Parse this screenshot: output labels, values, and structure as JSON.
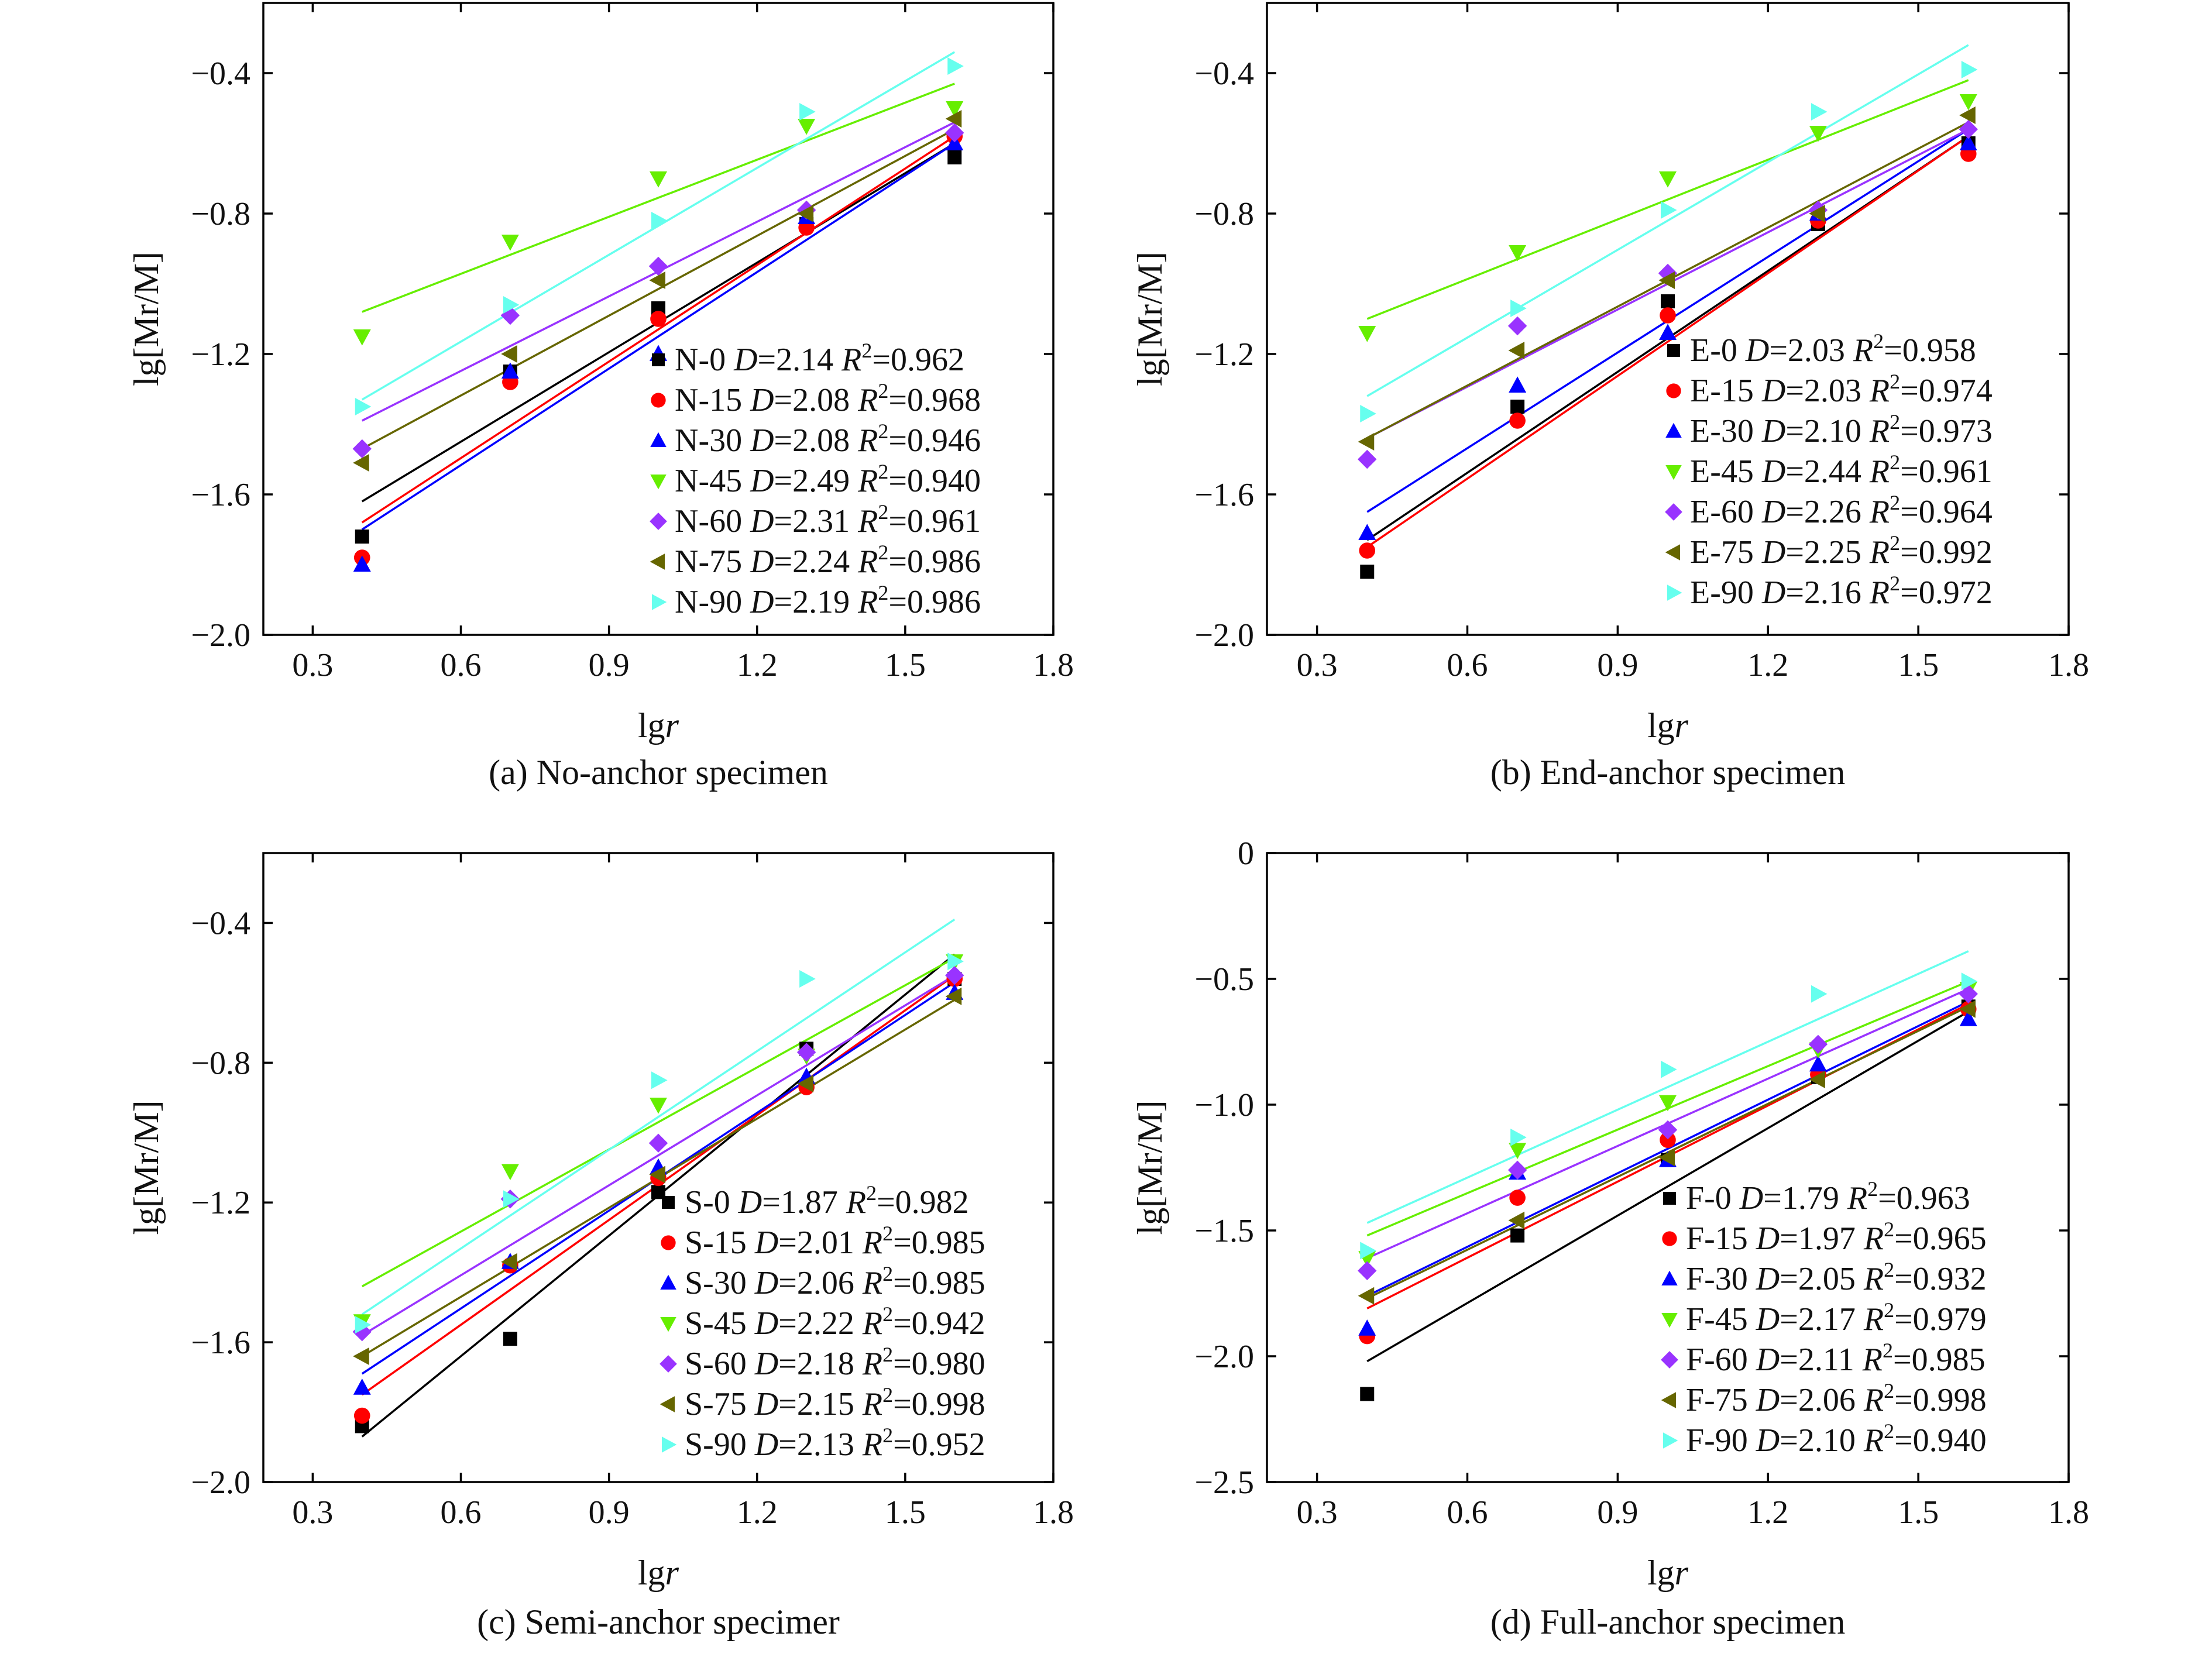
{
  "figure": {
    "panels": [
      "a",
      "b",
      "c",
      "d"
    ]
  },
  "chart_data": [
    {
      "type": "scatter",
      "caption": "(a) No-anchor specimen",
      "xlabel_prefix": "lg",
      "xlabel_var": "r",
      "ylabel": "lg[Mr/M]",
      "xlim": [
        0.2,
        1.8
      ],
      "ylim": [
        -2.0,
        -0.2
      ],
      "xticks": [
        0.3,
        0.6,
        0.9,
        1.2,
        1.5,
        1.8
      ],
      "xtick_labels": [
        "0.3",
        "0.6",
        "0.9",
        "1.2",
        "1.5",
        "1.8"
      ],
      "yticks": [
        -2.0,
        -1.6,
        -1.2,
        -0.8,
        -0.4
      ],
      "ytick_labels": [
        "−2.0",
        "−1.6",
        "−1.2",
        "−0.8",
        "−0.4"
      ],
      "legend_position": "bottom-right",
      "x": [
        0.4,
        0.7,
        1.0,
        1.3,
        1.6
      ],
      "series": [
        {
          "name": "N-0",
          "D": "2.14",
          "R2": "0.962",
          "color": "#000000",
          "marker": "square",
          "values": [
            -1.72,
            -1.25,
            -1.07,
            -0.83,
            -0.64
          ],
          "fit": [
            -1.62,
            -0.6
          ]
        },
        {
          "name": "N-15",
          "D": "2.08",
          "R2": "0.968",
          "color": "#ff0000",
          "marker": "circle",
          "values": [
            -1.78,
            -1.28,
            -1.1,
            -0.84,
            -0.58
          ],
          "fit": [
            -1.68,
            -0.58
          ]
        },
        {
          "name": "N-30",
          "D": "2.08",
          "R2": "0.946",
          "color": "#0000ff",
          "marker": "triangle-up",
          "values": [
            -1.8,
            -1.25,
            -1.2,
            -0.81,
            -0.6
          ],
          "fit": [
            -1.7,
            -0.6
          ]
        },
        {
          "name": "N-45",
          "D": "2.49",
          "R2": "0.940",
          "color": "#66ee00",
          "marker": "triangle-down",
          "values": [
            -1.15,
            -0.88,
            -0.7,
            -0.55,
            -0.5
          ],
          "fit": [
            -1.08,
            -0.43
          ]
        },
        {
          "name": "N-60",
          "D": "2.31",
          "R2": "0.961",
          "color": "#9933ff",
          "marker": "diamond",
          "values": [
            -1.47,
            -1.09,
            -0.95,
            -0.79,
            -0.57
          ],
          "fit": [
            -1.39,
            -0.54
          ]
        },
        {
          "name": "N-75",
          "D": "2.24",
          "R2": "0.986",
          "color": "#666600",
          "marker": "triangle-left",
          "values": [
            -1.51,
            -1.2,
            -0.99,
            -0.8,
            -0.53
          ],
          "fit": [
            -1.47,
            -0.56
          ]
        },
        {
          "name": "N-90",
          "D": "2.19",
          "R2": "0.986",
          "color": "#66ffee",
          "marker": "triangle-right",
          "values": [
            -1.35,
            -1.06,
            -0.82,
            -0.51,
            -0.38
          ],
          "fit": [
            -1.33,
            -0.34
          ]
        }
      ]
    },
    {
      "type": "scatter",
      "caption": "(b) End-anchor specimen",
      "xlabel_prefix": "lg",
      "xlabel_var": "r",
      "ylabel": "lg[Mr/M]",
      "xlim": [
        0.2,
        1.8
      ],
      "ylim": [
        -2.0,
        -0.2
      ],
      "xticks": [
        0.3,
        0.6,
        0.9,
        1.2,
        1.5,
        1.8
      ],
      "xtick_labels": [
        "0.3",
        "0.6",
        "0.9",
        "1.2",
        "1.5",
        "1.8"
      ],
      "yticks": [
        -2.0,
        -1.6,
        -1.2,
        -0.8,
        -0.4
      ],
      "ytick_labels": [
        "−2.0",
        "−1.6",
        "−1.2",
        "−0.8",
        "−0.4"
      ],
      "legend_position": "bottom-right",
      "x": [
        0.4,
        0.7,
        1.0,
        1.3,
        1.6
      ],
      "series": [
        {
          "name": "E-0",
          "D": "2.03",
          "R2": "0.958",
          "color": "#000000",
          "marker": "square",
          "values": [
            -1.82,
            -1.35,
            -1.05,
            -0.83,
            -0.6
          ],
          "fit": [
            -1.73,
            -0.58
          ]
        },
        {
          "name": "E-15",
          "D": "2.03",
          "R2": "0.974",
          "color": "#ff0000",
          "marker": "circle",
          "values": [
            -1.76,
            -1.39,
            -1.09,
            -0.82,
            -0.63
          ],
          "fit": [
            -1.75,
            -0.58
          ]
        },
        {
          "name": "E-30",
          "D": "2.10",
          "R2": "0.973",
          "color": "#0000ff",
          "marker": "triangle-up",
          "values": [
            -1.71,
            -1.29,
            -1.14,
            -0.8,
            -0.6
          ],
          "fit": [
            -1.65,
            -0.56
          ]
        },
        {
          "name": "E-45",
          "D": "2.44",
          "R2": "0.961",
          "color": "#66ee00",
          "marker": "triangle-down",
          "values": [
            -1.14,
            -0.91,
            -0.7,
            -0.57,
            -0.48
          ],
          "fit": [
            -1.1,
            -0.42
          ]
        },
        {
          "name": "E-60",
          "D": "2.26",
          "R2": "0.964",
          "color": "#9933ff",
          "marker": "diamond",
          "values": [
            -1.5,
            -1.12,
            -0.97,
            -0.79,
            -0.56
          ],
          "fit": [
            -1.44,
            -0.56
          ]
        },
        {
          "name": "E-75",
          "D": "2.25",
          "R2": "0.992",
          "color": "#666600",
          "marker": "triangle-left",
          "values": [
            -1.45,
            -1.19,
            -0.99,
            -0.8,
            -0.52
          ],
          "fit": [
            -1.44,
            -0.54
          ]
        },
        {
          "name": "E-90",
          "D": "2.16",
          "R2": "0.972",
          "color": "#66ffee",
          "marker": "triangle-right",
          "values": [
            -1.37,
            -1.07,
            -0.79,
            -0.51,
            -0.39
          ],
          "fit": [
            -1.32,
            -0.32
          ]
        }
      ]
    },
    {
      "type": "scatter",
      "caption": "(c) Semi-anchor specimer",
      "xlabel_prefix": "lg",
      "xlabel_var": "r",
      "ylabel": "lg[Mr/M]",
      "xlim": [
        0.2,
        1.8
      ],
      "ylim": [
        -2.0,
        -0.2
      ],
      "xticks": [
        0.3,
        0.6,
        0.9,
        1.2,
        1.5,
        1.8
      ],
      "xtick_labels": [
        "0.3",
        "0.6",
        "0.9",
        "1.2",
        "1.5",
        "1.8"
      ],
      "yticks": [
        -2.0,
        -1.6,
        -1.2,
        -0.8,
        -0.4
      ],
      "ytick_labels": [
        "−2.0",
        "−1.6",
        "−1.2",
        "−0.8",
        "−0.4"
      ],
      "legend_position": "bottom-right",
      "x": [
        0.4,
        0.7,
        1.0,
        1.3,
        1.6
      ],
      "series": [
        {
          "name": "S-0",
          "D": "1.87",
          "R2": "0.982",
          "color": "#000000",
          "marker": "square",
          "values": [
            -1.84,
            -1.59,
            -1.17,
            -0.76,
            -0.56
          ],
          "fit": [
            -1.87,
            -0.49
          ]
        },
        {
          "name": "S-15",
          "D": "2.01",
          "R2": "0.985",
          "color": "#ff0000",
          "marker": "circle",
          "values": [
            -1.81,
            -1.38,
            -1.13,
            -0.87,
            -0.56
          ],
          "fit": [
            -1.75,
            -0.55
          ]
        },
        {
          "name": "S-30",
          "D": "2.06",
          "R2": "0.985",
          "color": "#0000ff",
          "marker": "triangle-up",
          "values": [
            -1.73,
            -1.37,
            -1.1,
            -0.84,
            -0.6
          ],
          "fit": [
            -1.69,
            -0.57
          ]
        },
        {
          "name": "S-45",
          "D": "2.22",
          "R2": "0.942",
          "color": "#66ee00",
          "marker": "triangle-down",
          "values": [
            -1.54,
            -1.11,
            -0.92,
            -0.78,
            -0.51
          ],
          "fit": [
            -1.44,
            -0.5
          ]
        },
        {
          "name": "S-60",
          "D": "2.18",
          "R2": "0.980",
          "color": "#9933ff",
          "marker": "diamond",
          "values": [
            -1.57,
            -1.19,
            -1.03,
            -0.77,
            -0.55
          ],
          "fit": [
            -1.58,
            -0.55
          ]
        },
        {
          "name": "S-75",
          "D": "2.15",
          "R2": "0.998",
          "color": "#666600",
          "marker": "triangle-left",
          "values": [
            -1.64,
            -1.37,
            -1.12,
            -0.86,
            -0.61
          ],
          "fit": [
            -1.64,
            -0.62
          ]
        },
        {
          "name": "S-90",
          "D": "2.13",
          "R2": "0.952",
          "color": "#66ffee",
          "marker": "triangle-right",
          "values": [
            -1.55,
            -1.19,
            -0.85,
            -0.56,
            -0.51
          ],
          "fit": [
            -1.52,
            -0.39
          ]
        }
      ]
    },
    {
      "type": "scatter",
      "caption": "(d) Full-anchor specimen",
      "xlabel_prefix": "lg",
      "xlabel_var": "r",
      "ylabel": "lg[Mr/M]",
      "xlim": [
        0.2,
        1.8
      ],
      "ylim": [
        -2.5,
        0
      ],
      "xticks": [
        0.3,
        0.6,
        0.9,
        1.2,
        1.5,
        1.8
      ],
      "xtick_labels": [
        "0.3",
        "0.6",
        "0.9",
        "1.2",
        "1.5",
        "1.8"
      ],
      "yticks": [
        -2.5,
        -2.0,
        -1.5,
        -1.0,
        -0.5,
        0
      ],
      "ytick_labels": [
        "−2.5",
        "−2.0",
        "−1.5",
        "−1.0",
        "−0.5",
        "0"
      ],
      "legend_position": "bottom-right",
      "x": [
        0.4,
        0.7,
        1.0,
        1.3,
        1.6
      ],
      "series": [
        {
          "name": "F-0",
          "D": "1.79",
          "R2": "0.963",
          "color": "#000000",
          "marker": "square",
          "values": [
            -2.15,
            -1.52,
            -1.22,
            -0.89,
            -0.61
          ],
          "fit": [
            -2.02,
            -0.63
          ]
        },
        {
          "name": "F-15",
          "D": "1.97",
          "R2": "0.965",
          "color": "#ff0000",
          "marker": "circle",
          "values": [
            -1.92,
            -1.37,
            -1.14,
            -0.88,
            -0.62
          ],
          "fit": [
            -1.81,
            -0.6
          ]
        },
        {
          "name": "F-30",
          "D": "2.05",
          "R2": "0.932",
          "color": "#0000ff",
          "marker": "triangle-up",
          "values": [
            -1.89,
            -1.27,
            -1.22,
            -0.84,
            -0.66
          ],
          "fit": [
            -1.76,
            -0.59
          ]
        },
        {
          "name": "F-45",
          "D": "2.17",
          "R2": "0.979",
          "color": "#66ee00",
          "marker": "triangle-down",
          "values": [
            -1.61,
            -1.18,
            -0.99,
            -0.78,
            -0.54
          ],
          "fit": [
            -1.52,
            -0.51
          ]
        },
        {
          "name": "F-60",
          "D": "2.11",
          "R2": "0.985",
          "color": "#9933ff",
          "marker": "diamond",
          "values": [
            -1.66,
            -1.26,
            -1.1,
            -0.76,
            -0.56
          ],
          "fit": [
            -1.61,
            -0.54
          ]
        },
        {
          "name": "F-75",
          "D": "2.06",
          "R2": "0.998",
          "color": "#666600",
          "marker": "triangle-left",
          "values": [
            -1.76,
            -1.46,
            -1.21,
            -0.9,
            -0.62
          ],
          "fit": [
            -1.77,
            -0.61
          ]
        },
        {
          "name": "F-90",
          "D": "2.10",
          "R2": "0.940",
          "color": "#66ffee",
          "marker": "triangle-right",
          "values": [
            -1.58,
            -1.13,
            -0.86,
            -0.56,
            -0.51
          ],
          "fit": [
            -1.47,
            -0.39
          ]
        }
      ]
    }
  ]
}
